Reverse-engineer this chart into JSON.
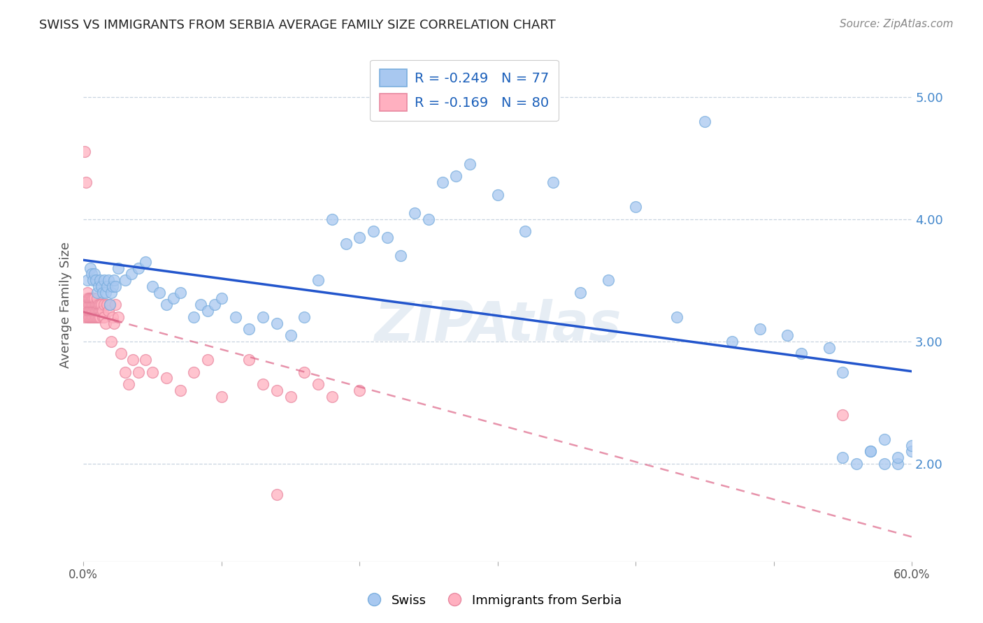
{
  "title": "SWISS VS IMMIGRANTS FROM SERBIA AVERAGE FAMILY SIZE CORRELATION CHART",
  "source": "Source: ZipAtlas.com",
  "ylabel": "Average Family Size",
  "right_yticks": [
    2.0,
    3.0,
    4.0,
    5.0
  ],
  "legend_swiss_r": "R = -0.249",
  "legend_swiss_n": "N = 77",
  "legend_serbia_r": "R = -0.169",
  "legend_serbia_n": "N = 80",
  "swiss_color": "#a8c8f0",
  "swiss_edge_color": "#7aaede",
  "serbia_color": "#ffb0c0",
  "serbia_edge_color": "#e888a0",
  "swiss_line_color": "#2255cc",
  "serbia_line_color": "#dd6688",
  "watermark": "ZIPAtlas",
  "xlim": [
    0.0,
    0.6
  ],
  "ylim": [
    1.2,
    5.4
  ],
  "swiss_x": [
    0.003,
    0.005,
    0.006,
    0.007,
    0.008,
    0.009,
    0.01,
    0.011,
    0.012,
    0.013,
    0.014,
    0.015,
    0.016,
    0.017,
    0.018,
    0.019,
    0.02,
    0.021,
    0.022,
    0.023,
    0.025,
    0.03,
    0.035,
    0.04,
    0.045,
    0.05,
    0.055,
    0.06,
    0.065,
    0.07,
    0.08,
    0.085,
    0.09,
    0.095,
    0.1,
    0.11,
    0.12,
    0.13,
    0.14,
    0.15,
    0.16,
    0.17,
    0.18,
    0.19,
    0.2,
    0.21,
    0.22,
    0.23,
    0.24,
    0.25,
    0.26,
    0.27,
    0.28,
    0.3,
    0.32,
    0.34,
    0.36,
    0.38,
    0.4,
    0.43,
    0.45,
    0.47,
    0.49,
    0.51,
    0.52,
    0.54,
    0.55,
    0.57,
    0.58,
    0.59,
    0.6,
    0.6,
    0.59,
    0.58,
    0.57,
    0.56,
    0.55
  ],
  "swiss_y": [
    3.5,
    3.6,
    3.55,
    3.5,
    3.55,
    3.5,
    3.4,
    3.45,
    3.5,
    3.45,
    3.4,
    3.5,
    3.4,
    3.45,
    3.5,
    3.3,
    3.4,
    3.45,
    3.5,
    3.45,
    3.6,
    3.5,
    3.55,
    3.6,
    3.65,
    3.45,
    3.4,
    3.3,
    3.35,
    3.4,
    3.2,
    3.3,
    3.25,
    3.3,
    3.35,
    3.2,
    3.1,
    3.2,
    3.15,
    3.05,
    3.2,
    3.5,
    4.0,
    3.8,
    3.85,
    3.9,
    3.85,
    3.7,
    4.05,
    4.0,
    4.3,
    4.35,
    4.45,
    4.2,
    3.9,
    4.3,
    3.4,
    3.5,
    4.1,
    3.2,
    4.8,
    3.0,
    3.1,
    3.05,
    2.9,
    2.95,
    2.75,
    2.1,
    2.2,
    2.0,
    2.1,
    2.15,
    2.05,
    2.0,
    2.1,
    2.0,
    2.05
  ],
  "serbia_x": [
    0.001,
    0.001,
    0.001,
    0.002,
    0.002,
    0.002,
    0.003,
    0.003,
    0.003,
    0.003,
    0.004,
    0.004,
    0.004,
    0.004,
    0.005,
    0.005,
    0.005,
    0.005,
    0.006,
    0.006,
    0.006,
    0.006,
    0.007,
    0.007,
    0.007,
    0.007,
    0.008,
    0.008,
    0.008,
    0.008,
    0.009,
    0.009,
    0.009,
    0.01,
    0.01,
    0.01,
    0.01,
    0.011,
    0.011,
    0.011,
    0.012,
    0.012,
    0.012,
    0.013,
    0.013,
    0.014,
    0.014,
    0.015,
    0.015,
    0.016,
    0.017,
    0.018,
    0.019,
    0.02,
    0.021,
    0.022,
    0.023,
    0.025,
    0.027,
    0.03,
    0.033,
    0.036,
    0.04,
    0.045,
    0.05,
    0.06,
    0.07,
    0.08,
    0.09,
    0.1,
    0.12,
    0.14,
    0.16,
    0.18,
    0.2,
    0.13,
    0.15,
    0.17,
    0.55,
    0.14
  ],
  "serbia_y": [
    3.3,
    3.2,
    4.55,
    3.3,
    3.25,
    4.3,
    3.35,
    3.2,
    3.3,
    3.4,
    3.2,
    3.3,
    3.25,
    3.35,
    3.3,
    3.2,
    3.25,
    3.35,
    3.3,
    3.2,
    3.25,
    3.35,
    3.3,
    3.2,
    3.25,
    3.35,
    3.3,
    3.2,
    3.25,
    3.35,
    3.3,
    3.2,
    3.25,
    3.3,
    3.2,
    3.25,
    3.35,
    3.25,
    3.3,
    3.2,
    3.25,
    3.3,
    3.2,
    3.25,
    3.3,
    3.2,
    3.25,
    3.3,
    3.2,
    3.15,
    3.3,
    3.25,
    3.3,
    3.0,
    3.2,
    3.15,
    3.3,
    3.2,
    2.9,
    2.75,
    2.65,
    2.85,
    2.75,
    2.85,
    2.75,
    2.7,
    2.6,
    2.75,
    2.85,
    2.55,
    2.85,
    2.6,
    2.75,
    2.55,
    2.6,
    2.65,
    2.55,
    2.65,
    2.4,
    1.75
  ]
}
